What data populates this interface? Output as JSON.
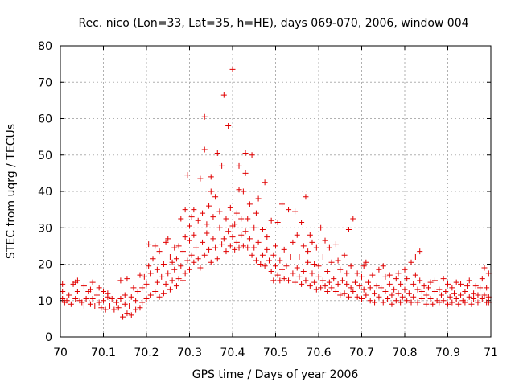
{
  "chart_data": {
    "type": "scatter",
    "title": "Rec. nico (Lon=33, Lat=35, h=HE), days 069-070, 2006, window 004",
    "xlabel": "GPS time / Days of year 2006",
    "ylabel": "STEC from uqrg / TECUs",
    "xlim": [
      70,
      71
    ],
    "ylim": [
      0,
      80
    ],
    "xticks": [
      "70",
      "70.1",
      "70.2",
      "70.3",
      "70.4",
      "70.5",
      "70.6",
      "70.7",
      "70.8",
      "70.9",
      "71"
    ],
    "yticks": [
      "0",
      "10",
      "20",
      "30",
      "40",
      "50",
      "60",
      "70",
      "80"
    ],
    "grid": true,
    "marker": "plus",
    "color": "#e00000",
    "points": [
      [
        70.005,
        10.5
      ],
      [
        70.005,
        12.5
      ],
      [
        70.005,
        14.5
      ],
      [
        70.01,
        9.5
      ],
      [
        70.015,
        10.0
      ],
      [
        70.02,
        11.5
      ],
      [
        70.025,
        9.0
      ],
      [
        70.03,
        14.5
      ],
      [
        70.035,
        10.5
      ],
      [
        70.035,
        15.0
      ],
      [
        70.04,
        12.5
      ],
      [
        70.04,
        15.5
      ],
      [
        70.045,
        10.0
      ],
      [
        70.05,
        9.5
      ],
      [
        70.055,
        8.5
      ],
      [
        70.055,
        14.0
      ],
      [
        70.06,
        10.5
      ],
      [
        70.065,
        12.5
      ],
      [
        70.07,
        9.0
      ],
      [
        70.07,
        13.0
      ],
      [
        70.075,
        10.5
      ],
      [
        70.075,
        15.0
      ],
      [
        70.08,
        8.5
      ],
      [
        70.085,
        11.5
      ],
      [
        70.09,
        9.5
      ],
      [
        70.09,
        13.5
      ],
      [
        70.095,
        8.0
      ],
      [
        70.1,
        10.0
      ],
      [
        70.1,
        12.5
      ],
      [
        70.105,
        7.5
      ],
      [
        70.11,
        11.0
      ],
      [
        70.11,
        12.0
      ],
      [
        70.115,
        8.5
      ],
      [
        70.12,
        10.5
      ],
      [
        70.125,
        7.5
      ],
      [
        70.13,
        9.5
      ],
      [
        70.135,
        8.0
      ],
      [
        70.14,
        10.5
      ],
      [
        70.14,
        15.5
      ],
      [
        70.145,
        5.5
      ],
      [
        70.15,
        9.0
      ],
      [
        70.15,
        11.5
      ],
      [
        70.155,
        6.5
      ],
      [
        70.155,
        16.0
      ],
      [
        70.16,
        8.5
      ],
      [
        70.165,
        6.0
      ],
      [
        70.165,
        11.0
      ],
      [
        70.17,
        13.5
      ],
      [
        70.175,
        7.5
      ],
      [
        70.175,
        10.0
      ],
      [
        70.18,
        12.5
      ],
      [
        70.185,
        8.0
      ],
      [
        70.185,
        17.0
      ],
      [
        70.19,
        9.5
      ],
      [
        70.19,
        13.5
      ],
      [
        70.195,
        16.5
      ],
      [
        70.2,
        10.5
      ],
      [
        70.2,
        14.5
      ],
      [
        70.205,
        19.5
      ],
      [
        70.205,
        25.5
      ],
      [
        70.21,
        11.5
      ],
      [
        70.21,
        17.5
      ],
      [
        70.215,
        21.5
      ],
      [
        70.22,
        12.5
      ],
      [
        70.22,
        25.0
      ],
      [
        70.225,
        15.0
      ],
      [
        70.225,
        18.5
      ],
      [
        70.23,
        11.0
      ],
      [
        70.23,
        23.5
      ],
      [
        70.235,
        16.5
      ],
      [
        70.24,
        12.0
      ],
      [
        70.24,
        20.0
      ],
      [
        70.245,
        14.5
      ],
      [
        70.245,
        26.0
      ],
      [
        70.25,
        17.5
      ],
      [
        70.25,
        27.0
      ],
      [
        70.255,
        13.0
      ],
      [
        70.255,
        22.0
      ],
      [
        70.26,
        15.5
      ],
      [
        70.26,
        20.5
      ],
      [
        70.265,
        18.5
      ],
      [
        70.265,
        24.5
      ],
      [
        70.27,
        14.0
      ],
      [
        70.27,
        21.5
      ],
      [
        70.275,
        16.0
      ],
      [
        70.275,
        25.0
      ],
      [
        70.28,
        19.5
      ],
      [
        70.28,
        32.5
      ],
      [
        70.285,
        15.5
      ],
      [
        70.285,
        23.5
      ],
      [
        70.29,
        17.5
      ],
      [
        70.29,
        27.5
      ],
      [
        70.29,
        35.0
      ],
      [
        70.295,
        21.0
      ],
      [
        70.295,
        44.5
      ],
      [
        70.3,
        18.5
      ],
      [
        70.3,
        26.5
      ],
      [
        70.3,
        30.5
      ],
      [
        70.305,
        22.5
      ],
      [
        70.305,
        33.0
      ],
      [
        70.31,
        20.5
      ],
      [
        70.31,
        28.0
      ],
      [
        70.31,
        35.0
      ],
      [
        70.315,
        24.5
      ],
      [
        70.32,
        21.5
      ],
      [
        70.32,
        32.0
      ],
      [
        70.325,
        19.0
      ],
      [
        70.325,
        43.5
      ],
      [
        70.33,
        26.0
      ],
      [
        70.33,
        34.0
      ],
      [
        70.335,
        22.5
      ],
      [
        70.335,
        51.5
      ],
      [
        70.335,
        60.5
      ],
      [
        70.34,
        28.5
      ],
      [
        70.34,
        31.0
      ],
      [
        70.345,
        24.0
      ],
      [
        70.345,
        36.0
      ],
      [
        70.35,
        20.5
      ],
      [
        70.35,
        40.0
      ],
      [
        70.35,
        44.0
      ],
      [
        70.355,
        27.0
      ],
      [
        70.355,
        33.0
      ],
      [
        70.36,
        24.5
      ],
      [
        70.36,
        38.5
      ],
      [
        70.365,
        21.5
      ],
      [
        70.365,
        50.5
      ],
      [
        70.37,
        30.0
      ],
      [
        70.37,
        34.5
      ],
      [
        70.375,
        25.5
      ],
      [
        70.375,
        47.0
      ],
      [
        70.38,
        27.0
      ],
      [
        70.38,
        66.5
      ],
      [
        70.385,
        23.5
      ],
      [
        70.385,
        32.5
      ],
      [
        70.39,
        29.0
      ],
      [
        70.39,
        58.0
      ],
      [
        70.395,
        25.0
      ],
      [
        70.395,
        35.5
      ],
      [
        70.4,
        27.5
      ],
      [
        70.4,
        30.5
      ],
      [
        70.4,
        73.5
      ],
      [
        70.405,
        24.0
      ],
      [
        70.405,
        31.0
      ],
      [
        70.41,
        26.0
      ],
      [
        70.41,
        34.0
      ],
      [
        70.415,
        24.5
      ],
      [
        70.415,
        40.5
      ],
      [
        70.415,
        47.0
      ],
      [
        70.42,
        28.0
      ],
      [
        70.42,
        32.5
      ],
      [
        70.425,
        25.0
      ],
      [
        70.425,
        40.0
      ],
      [
        70.43,
        29.0
      ],
      [
        70.43,
        45.0
      ],
      [
        70.43,
        50.5
      ],
      [
        70.435,
        24.5
      ],
      [
        70.435,
        32.5
      ],
      [
        70.44,
        27.0
      ],
      [
        70.44,
        36.5
      ],
      [
        70.445,
        22.5
      ],
      [
        70.445,
        50.0
      ],
      [
        70.45,
        24.5
      ],
      [
        70.45,
        30.0
      ],
      [
        70.455,
        21.0
      ],
      [
        70.455,
        34.0
      ],
      [
        70.46,
        26.0
      ],
      [
        70.46,
        38.0
      ],
      [
        70.465,
        20.0
      ],
      [
        70.47,
        22.5
      ],
      [
        70.47,
        29.5
      ],
      [
        70.475,
        19.5
      ],
      [
        70.475,
        42.5
      ],
      [
        70.48,
        24.0
      ],
      [
        70.48,
        27.5
      ],
      [
        70.485,
        21.0
      ],
      [
        70.49,
        18.0
      ],
      [
        70.49,
        32.0
      ],
      [
        70.495,
        15.5
      ],
      [
        70.495,
        22.5
      ],
      [
        70.5,
        19.5
      ],
      [
        70.5,
        25.0
      ],
      [
        70.505,
        17.0
      ],
      [
        70.505,
        31.5
      ],
      [
        70.51,
        15.5
      ],
      [
        70.51,
        21.0
      ],
      [
        70.515,
        18.5
      ],
      [
        70.515,
        36.5
      ],
      [
        70.52,
        16.0
      ],
      [
        70.52,
        24.0
      ],
      [
        70.525,
        19.5
      ],
      [
        70.53,
        15.5
      ],
      [
        70.53,
        35.0
      ],
      [
        70.535,
        22.0
      ],
      [
        70.54,
        17.5
      ],
      [
        70.54,
        26.0
      ],
      [
        70.545,
        15.0
      ],
      [
        70.545,
        34.5
      ],
      [
        70.55,
        19.0
      ],
      [
        70.55,
        28.0
      ],
      [
        70.555,
        16.5
      ],
      [
        70.555,
        22.0
      ],
      [
        70.56,
        14.5
      ],
      [
        70.56,
        31.5
      ],
      [
        70.565,
        18.0
      ],
      [
        70.565,
        25.0
      ],
      [
        70.57,
        15.5
      ],
      [
        70.57,
        38.5
      ],
      [
        70.575,
        20.5
      ],
      [
        70.575,
        23.5
      ],
      [
        70.58,
        14.0
      ],
      [
        70.58,
        28.0
      ],
      [
        70.585,
        17.5
      ],
      [
        70.585,
        26.0
      ],
      [
        70.59,
        15.0
      ],
      [
        70.59,
        20.0
      ],
      [
        70.595,
        13.0
      ],
      [
        70.595,
        24.5
      ],
      [
        70.6,
        16.5
      ],
      [
        70.6,
        19.5
      ],
      [
        70.605,
        13.5
      ],
      [
        70.605,
        30.0
      ],
      [
        70.61,
        15.5
      ],
      [
        70.61,
        22.0
      ],
      [
        70.615,
        14.0
      ],
      [
        70.615,
        26.5
      ],
      [
        70.62,
        12.5
      ],
      [
        70.62,
        18.0
      ],
      [
        70.625,
        15.0
      ],
      [
        70.625,
        24.5
      ],
      [
        70.63,
        13.5
      ],
      [
        70.63,
        20.5
      ],
      [
        70.635,
        16.0
      ],
      [
        70.64,
        12.5
      ],
      [
        70.64,
        25.5
      ],
      [
        70.645,
        14.5
      ],
      [
        70.645,
        21.0
      ],
      [
        70.65,
        11.5
      ],
      [
        70.65,
        18.5
      ],
      [
        70.655,
        15.5
      ],
      [
        70.66,
        12.0
      ],
      [
        70.66,
        22.5
      ],
      [
        70.665,
        14.5
      ],
      [
        70.665,
        17.5
      ],
      [
        70.67,
        11.0
      ],
      [
        70.67,
        29.5
      ],
      [
        70.675,
        13.5
      ],
      [
        70.675,
        19.5
      ],
      [
        70.68,
        12.5
      ],
      [
        70.68,
        32.5
      ],
      [
        70.685,
        15.0
      ],
      [
        70.69,
        11.0
      ],
      [
        70.69,
        17.5
      ],
      [
        70.695,
        14.0
      ],
      [
        70.7,
        10.5
      ],
      [
        70.7,
        16.5
      ],
      [
        70.705,
        13.0
      ],
      [
        70.705,
        19.5
      ],
      [
        70.71,
        11.5
      ],
      [
        70.71,
        20.5
      ],
      [
        70.715,
        15.0
      ],
      [
        70.72,
        10.0
      ],
      [
        70.72,
        13.5
      ],
      [
        70.725,
        17.0
      ],
      [
        70.73,
        12.0
      ],
      [
        70.73,
        9.5
      ],
      [
        70.735,
        14.0
      ],
      [
        70.74,
        11.0
      ],
      [
        70.74,
        18.5
      ],
      [
        70.745,
        13.5
      ],
      [
        70.75,
        9.5
      ],
      [
        70.75,
        19.5
      ],
      [
        70.755,
        12.5
      ],
      [
        70.755,
        16.5
      ],
      [
        70.76,
        10.5
      ],
      [
        70.765,
        14.5
      ],
      [
        70.765,
        17.0
      ],
      [
        70.77,
        11.5
      ],
      [
        70.77,
        9.0
      ],
      [
        70.775,
        13.0
      ],
      [
        70.78,
        16.0
      ],
      [
        70.78,
        10.0
      ],
      [
        70.785,
        12.0
      ],
      [
        70.785,
        17.5
      ],
      [
        70.79,
        9.5
      ],
      [
        70.79,
        14.5
      ],
      [
        70.795,
        11.0
      ],
      [
        70.8,
        13.0
      ],
      [
        70.8,
        18.5
      ],
      [
        70.805,
        10.0
      ],
      [
        70.805,
        16.0
      ],
      [
        70.81,
        12.0
      ],
      [
        70.815,
        9.5
      ],
      [
        70.815,
        20.5
      ],
      [
        70.82,
        14.5
      ],
      [
        70.82,
        11.0
      ],
      [
        70.825,
        17.0
      ],
      [
        70.825,
        22.0
      ],
      [
        70.83,
        9.5
      ],
      [
        70.83,
        13.0
      ],
      [
        70.835,
        15.5
      ],
      [
        70.835,
        23.5
      ],
      [
        70.84,
        10.5
      ],
      [
        70.84,
        12.5
      ],
      [
        70.845,
        14.0
      ],
      [
        70.85,
        9.0
      ],
      [
        70.85,
        11.5
      ],
      [
        70.855,
        13.5
      ],
      [
        70.86,
        10.5
      ],
      [
        70.86,
        15.0
      ],
      [
        70.865,
        9.0
      ],
      [
        70.87,
        12.5
      ],
      [
        70.87,
        15.5
      ],
      [
        70.875,
        10.0
      ],
      [
        70.88,
        13.0
      ],
      [
        70.88,
        9.5
      ],
      [
        70.885,
        11.5
      ],
      [
        70.89,
        16.0
      ],
      [
        70.89,
        10.0
      ],
      [
        70.895,
        12.5
      ],
      [
        70.9,
        9.0
      ],
      [
        70.9,
        14.5
      ],
      [
        70.905,
        11.0
      ],
      [
        70.91,
        13.5
      ],
      [
        70.91,
        9.5
      ],
      [
        70.915,
        12.0
      ],
      [
        70.92,
        10.5
      ],
      [
        70.92,
        15.0
      ],
      [
        70.925,
        9.0
      ],
      [
        70.93,
        11.5
      ],
      [
        70.93,
        14.5
      ],
      [
        70.935,
        10.0
      ],
      [
        70.94,
        12.5
      ],
      [
        70.94,
        9.5
      ],
      [
        70.945,
        14.0
      ],
      [
        70.95,
        11.0
      ],
      [
        70.95,
        15.5
      ],
      [
        70.955,
        9.0
      ],
      [
        70.96,
        12.0
      ],
      [
        70.96,
        10.5
      ],
      [
        70.965,
        14.0
      ],
      [
        70.97,
        11.5
      ],
      [
        70.97,
        9.5
      ],
      [
        70.975,
        13.5
      ],
      [
        70.98,
        10.5
      ],
      [
        70.98,
        16.0
      ],
      [
        70.985,
        11.5
      ],
      [
        70.985,
        19.0
      ],
      [
        70.99,
        9.5
      ],
      [
        70.99,
        13.5
      ],
      [
        70.995,
        17.5
      ],
      [
        70.995,
        11.0
      ],
      [
        70.995,
        9.5
      ]
    ]
  }
}
